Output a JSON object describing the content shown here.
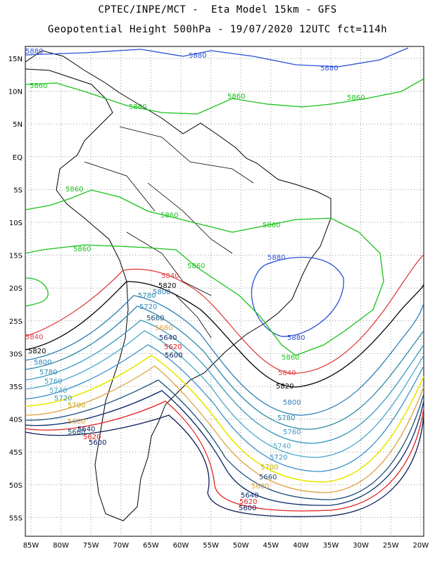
{
  "header": {
    "line1": "CPTEC/INPE/MCT -  Eta Model 15km - GFS",
    "line2": "Geopotential Height 500hPa - 19/07/2020 12UTC fct=114h"
  },
  "axes": {
    "lat_labels": [
      "15N",
      "10N",
      "5N",
      "EQ",
      "5S",
      "10S",
      "15S",
      "20S",
      "25S",
      "30S",
      "35S",
      "40S",
      "45S",
      "50S",
      "55S"
    ],
    "lon_labels": [
      "85W",
      "80W",
      "75W",
      "70W",
      "65W",
      "60W",
      "55W",
      "50W",
      "45W",
      "40W",
      "35W",
      "30W",
      "25W",
      "20W"
    ],
    "grid": "dotted"
  },
  "contours": [
    {
      "value": "5880",
      "color": "#2a4fd6"
    },
    {
      "value": "5860",
      "color": "#19c219"
    },
    {
      "value": "5840",
      "color": "#e04040"
    },
    {
      "value": "5820",
      "color": "#000000"
    },
    {
      "value": "5800",
      "color": "#2e7fb8"
    },
    {
      "value": "5780",
      "color": "#2a8aa8"
    },
    {
      "value": "5760",
      "color": "#3a9ac0"
    },
    {
      "value": "5740",
      "color": "#4aa8c8"
    },
    {
      "value": "5720",
      "color": "#3a90c8"
    },
    {
      "value": "5700",
      "color": "#e8e800"
    },
    {
      "value": "5680",
      "color": "#e0a040"
    },
    {
      "value": "5660",
      "color": "#1a4f7a"
    },
    {
      "value": "5640",
      "color": "#0a2a6a"
    },
    {
      "value": "5620",
      "color": "#e02020"
    },
    {
      "value": "5600",
      "color": "#0a1a5a"
    }
  ]
}
